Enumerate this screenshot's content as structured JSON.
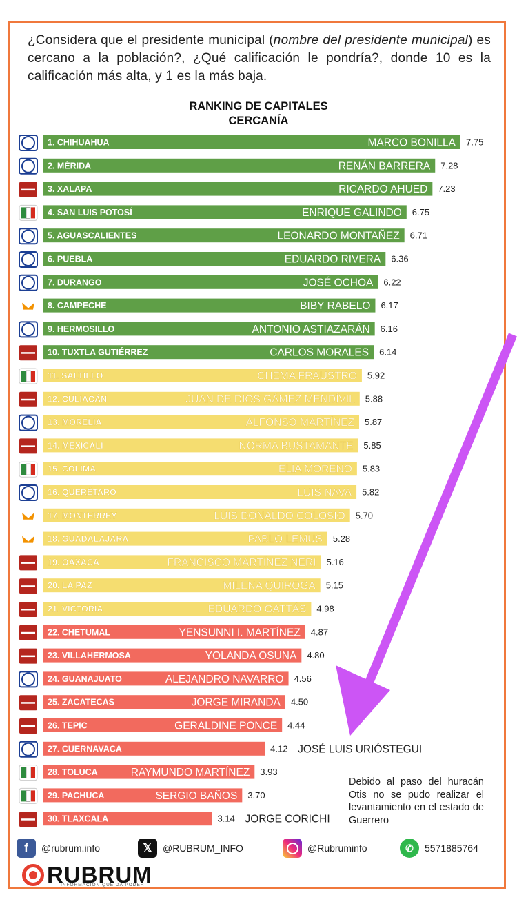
{
  "question": {
    "part1": "¿Considera que el presidente municipal (",
    "italic": "nombre del presidente municipal",
    "part2": ") es cercano a la población?, ¿Qué calificación le pondría?, donde 10 es la calificación más alta, y 1 es la más baja."
  },
  "chart_data": {
    "type": "bar",
    "orientation": "horizontal",
    "title": "RANKING DE CAPITALES",
    "subtitle": "CERCANÍA",
    "xlim": [
      0,
      7.75
    ],
    "colors": {
      "high": "#5f9f47",
      "mid": "#f5dd70",
      "low": "#f26a5e"
    },
    "categories": [
      "1. CHIHUAHUA",
      "2. MÉRIDA",
      "3. XALAPA",
      "4. SAN LUIS POTOSÍ",
      "5. AGUASCALIENTES",
      "6. PUEBLA",
      "7. DURANGO",
      "8. CAMPECHE",
      "9. HERMOSILLO",
      "10. TUXTLA GUTIÉRREZ",
      "11. SALTILLO",
      "12. CULIACÁN",
      "13. MORELIA",
      "14. MEXICALI",
      "15. COLIMA",
      "16. QUERÉTARO",
      "17. MONTERREY",
      "18. GUADALAJARA",
      "19. OAXACA",
      "20. LA PAZ",
      "21. VICTORIA",
      "22. CHETUMAL",
      "23. VILLAHERMOSA",
      "24. GUANAJUATO",
      "25. ZACATECAS",
      "26. TEPIC",
      "27. CUERNAVACA",
      "28. TOLUCA",
      "29. PACHUCA",
      "30. TLAXCALA"
    ],
    "values": [
      7.75,
      7.28,
      7.23,
      6.75,
      6.71,
      6.36,
      6.22,
      6.17,
      6.16,
      6.14,
      5.92,
      5.88,
      5.87,
      5.85,
      5.83,
      5.82,
      5.7,
      5.28,
      5.16,
      5.15,
      4.98,
      4.87,
      4.8,
      4.56,
      4.5,
      4.44,
      4.12,
      3.93,
      3.7,
      3.14
    ],
    "value_labels": [
      "7.75",
      "7.28",
      "7.23",
      "6.75",
      "6.71",
      "6.36",
      "6.22",
      "6.17",
      "6.16",
      "6.14",
      "5.92",
      "5.88",
      "5.87",
      "5.85",
      "5.83",
      "5.82",
      "5.70",
      "5.28",
      "5.16",
      "5.15",
      "4.98",
      "4.87",
      "4.80",
      "4.56",
      "4.50",
      "4.44",
      "4.12",
      "3.93",
      "3.70",
      "3.14"
    ],
    "mayors": [
      "MARCO BONILLA",
      "RENÁN BARRERA",
      "RICARDO AHUED",
      "ENRIQUE GALINDO",
      "LEONARDO MONTAÑEZ",
      "EDUARDO RIVERA",
      "JOSÉ OCHOA",
      "BIBY RABELO",
      "ANTONIO ASTIAZARÁN",
      "CARLOS MORALES",
      "CHEMA FRAUSTRO",
      "JUAN DE DIOS GÁMEZ MENDÍVIL",
      "ALFONSO MARTÍNEZ",
      "NORMA BUSTAMANTE",
      "ELIA MORENO",
      "LUIS NAVA",
      "LUIS DONALDO COLOSIO",
      "PABLO LEMUS",
      "FRANCISCO MARTÍNEZ NERI",
      "MILENA QUIROGA",
      "EDUARDO GATTÁS",
      "YENSUNNI I. MARTÍNEZ",
      "YOLANDA OSUNA",
      "ALEJANDRO NAVARRO",
      "JORGE MIRANDA",
      "GERALDINE PONCE",
      "JOSÉ LUIS URIÓSTEGUI",
      "RAYMUNDO MARTÍNEZ",
      "SERGIO BAÑOS",
      "JORGE CORICHI"
    ],
    "mayor_outside": [
      false,
      false,
      false,
      false,
      false,
      false,
      false,
      false,
      false,
      false,
      false,
      false,
      false,
      false,
      false,
      false,
      false,
      false,
      false,
      false,
      false,
      false,
      false,
      false,
      false,
      false,
      true,
      false,
      false,
      true
    ],
    "parties": [
      "PAN",
      "PAN",
      "morena",
      "PRI",
      "PAN",
      "PAN",
      "PAN",
      "MC",
      "PAN",
      "morena",
      "PRI",
      "morena",
      "PAN",
      "morena",
      "PRI",
      "PAN",
      "MC",
      "MC",
      "morena",
      "morena",
      "morena",
      "morena",
      "morena",
      "PAN",
      "morena",
      "morena",
      "PAN",
      "PRI",
      "PRI",
      "morena"
    ],
    "color_groups": [
      "high",
      "high",
      "high",
      "high",
      "high",
      "high",
      "high",
      "high",
      "high",
      "high",
      "mid",
      "mid",
      "mid",
      "mid",
      "mid",
      "mid",
      "mid",
      "mid",
      "mid",
      "mid",
      "mid",
      "low",
      "low",
      "low",
      "low",
      "low",
      "low",
      "low",
      "low",
      "low"
    ]
  },
  "party_colors": {
    "PAN": "#1c3f94",
    "morena": "#b5261e",
    "PRI": "#2e8b3e",
    "MC": "#f39200"
  },
  "note": "Debido al paso del huracán Otis no se pudo realizar el levantamiento en el estado de Guerrero",
  "footer": {
    "facebook": "@rubrum.info",
    "x": "@RUBRUM_INFO",
    "instagram": "@Rubruminfo",
    "whatsapp": "5571885764"
  },
  "brand": {
    "name": "RUBRUM",
    "tagline": "INFORMACIÓN QUE DA PODER"
  },
  "arrow_color": "#cc55f5"
}
